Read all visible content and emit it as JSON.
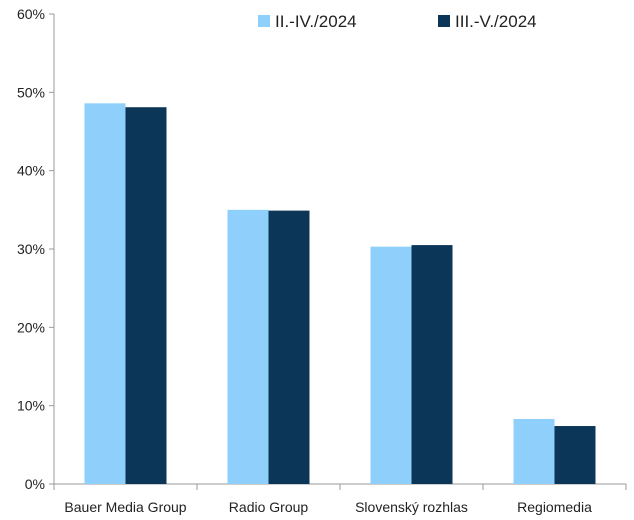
{
  "chart_data": {
    "type": "bar",
    "categories": [
      "Bauer Media Group",
      "Radio Group",
      "Slovenský rozhlas",
      "Regiomedia"
    ],
    "series": [
      {
        "name": "II.-IV./2024",
        "values": [
          48.6,
          35.0,
          30.3,
          8.3
        ],
        "color": "#8ecffc"
      },
      {
        "name": "III.-V./2024",
        "values": [
          48.1,
          34.9,
          30.5,
          7.4
        ],
        "color": "#0b3658"
      }
    ],
    "yticks": [
      "0%",
      "10%",
      "20%",
      "30%",
      "40%",
      "50%",
      "60%"
    ],
    "ylim": [
      0,
      60
    ],
    "grid": false,
    "legend_position": "top-right",
    "title": "",
    "xlabel": "",
    "ylabel": ""
  }
}
